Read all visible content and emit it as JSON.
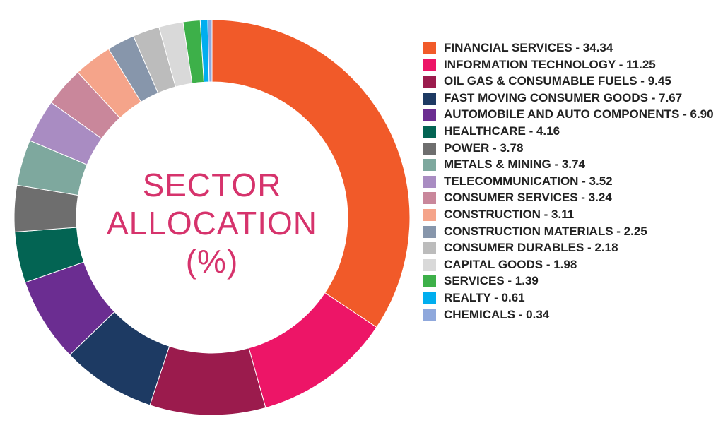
{
  "chart_data": {
    "type": "pie",
    "title_lines": [
      "SECTOR",
      "ALLOCATION",
      "(%)"
    ],
    "donut": true,
    "legend_position": "right",
    "series": [
      {
        "label": "FINANCIAL SERVICES - 34.34",
        "value": 34.34,
        "color": "#f15a29"
      },
      {
        "label": "INFORMATION TECHNOLOGY - 11.25",
        "value": 11.25,
        "color": "#ed1567"
      },
      {
        "label": "OIL GAS & CONSUMABLE FUELS - 9.45",
        "value": 9.45,
        "color": "#9b1b4d"
      },
      {
        "label": "FAST MOVING CONSUMER GOODS - 7.67",
        "value": 7.67,
        "color": "#1d3a63"
      },
      {
        "label": "AUTOMOBILE AND AUTO COMPONENTS - 6.90",
        "value": 6.9,
        "color": "#6b2d91"
      },
      {
        "label": "HEALTHCARE - 4.16",
        "value": 4.16,
        "color": "#036453"
      },
      {
        "label": "POWER - 3.78",
        "value": 3.78,
        "color": "#6e6e6e"
      },
      {
        "label": "METALS & MINING - 3.74",
        "value": 3.74,
        "color": "#7ea89e"
      },
      {
        "label": "TELECOMMUNICATION - 3.52",
        "value": 3.52,
        "color": "#a98cc2"
      },
      {
        "label": "CONSUMER SERVICES - 3.24",
        "value": 3.24,
        "color": "#c9879b"
      },
      {
        "label": "CONSTRUCTION - 3.11",
        "value": 3.11,
        "color": "#f5a48a"
      },
      {
        "label": "CONSTRUCTION MATERIALS - 2.25",
        "value": 2.25,
        "color": "#8796ab"
      },
      {
        "label": "CONSUMER DURABLES - 2.18",
        "value": 2.18,
        "color": "#bcbcbc"
      },
      {
        "label": "CAPITAL GOODS - 1.98",
        "value": 1.98,
        "color": "#d9d9d9"
      },
      {
        "label": "SERVICES - 1.39",
        "value": 1.39,
        "color": "#3db049"
      },
      {
        "label": "REALTY - 0.61",
        "value": 0.61,
        "color": "#00aeef"
      },
      {
        "label": "CHEMICALS - 0.34",
        "value": 0.34,
        "color": "#8fa8dc"
      }
    ]
  }
}
